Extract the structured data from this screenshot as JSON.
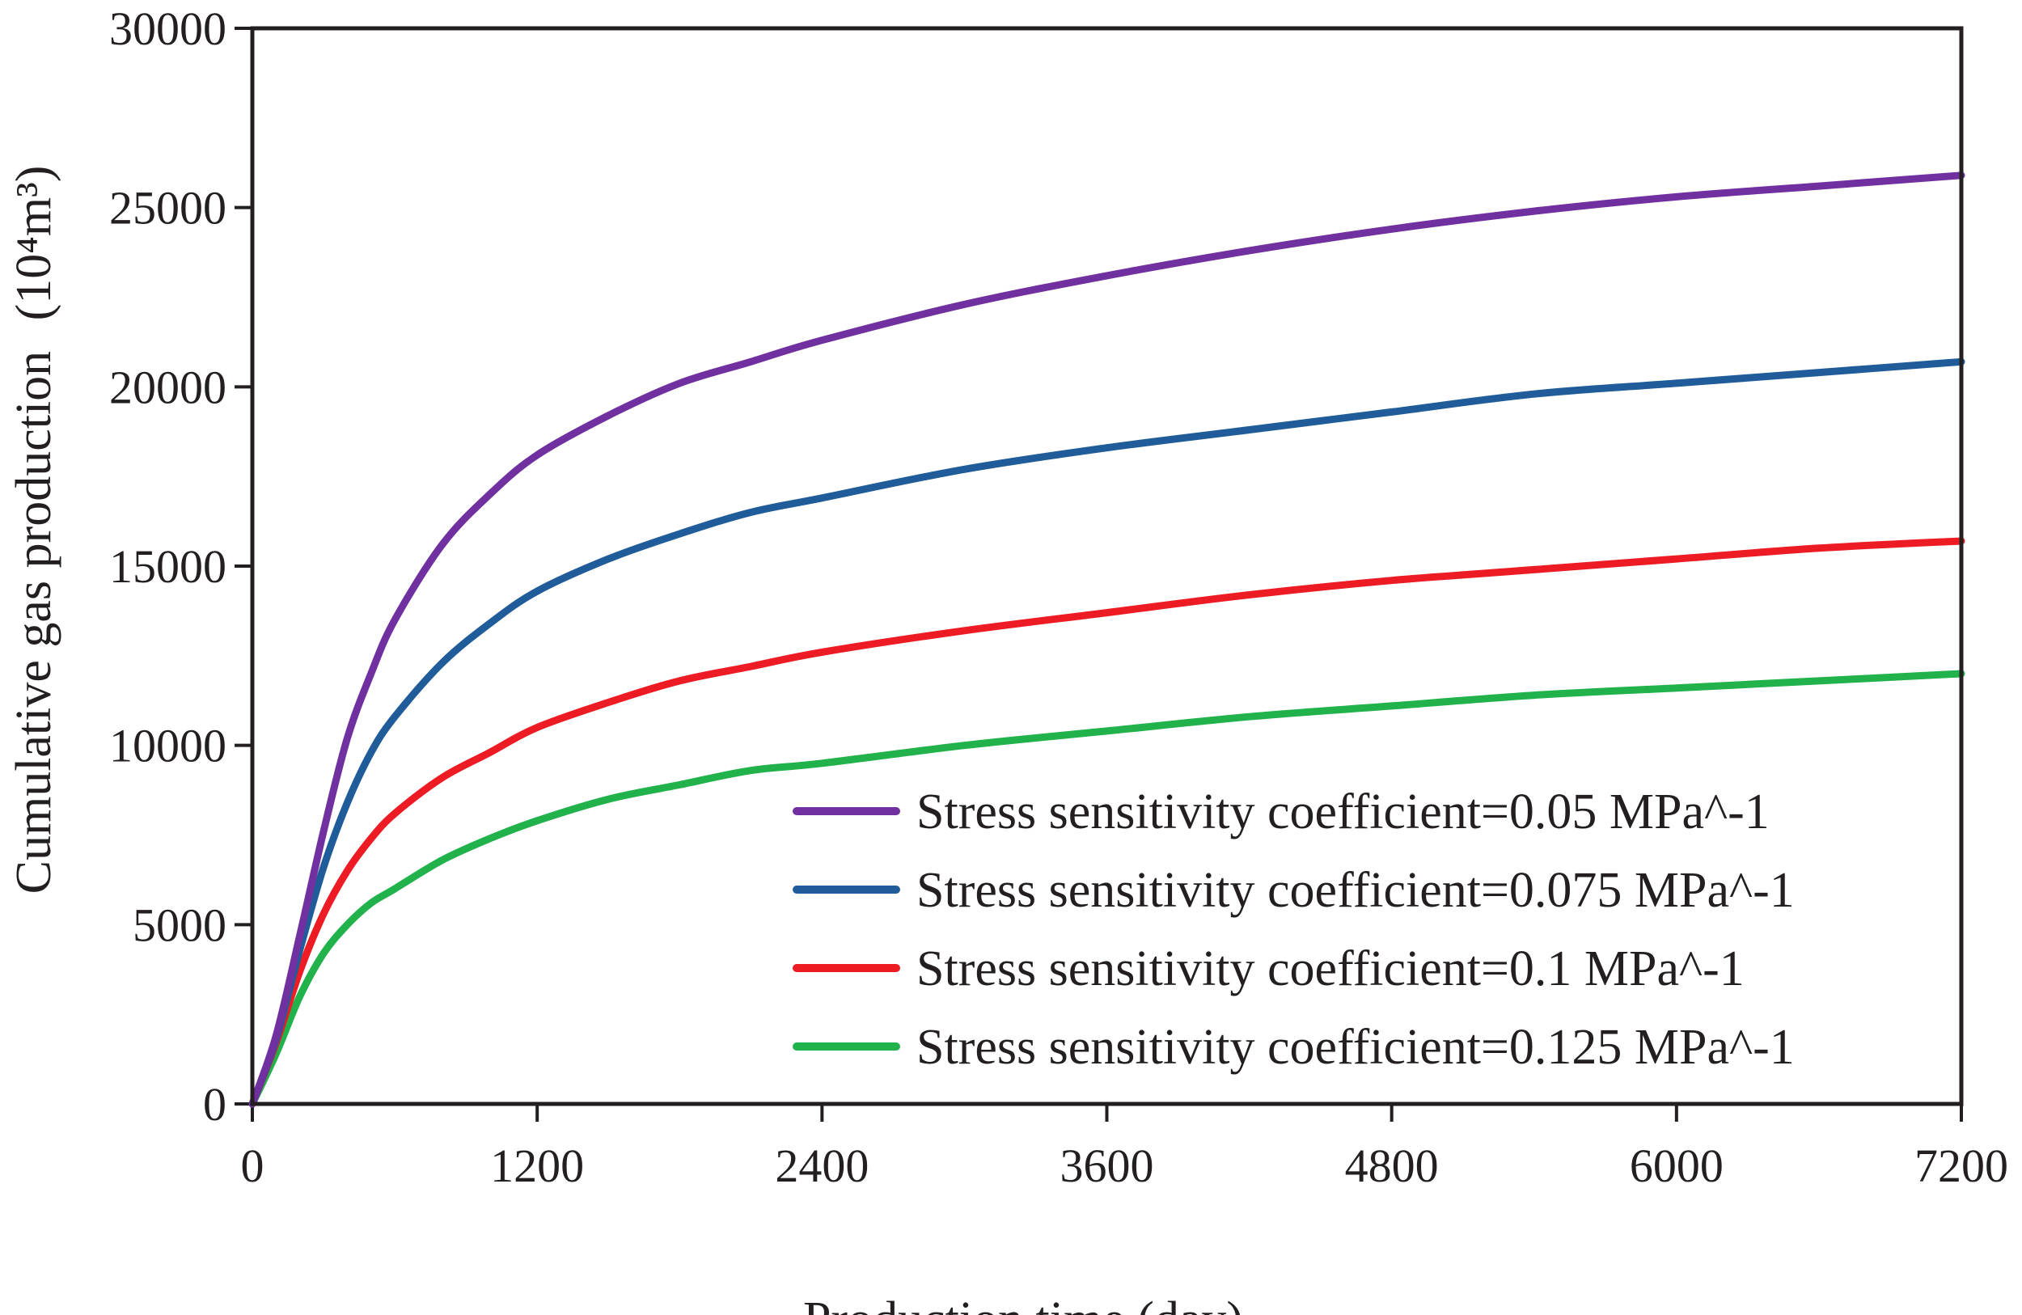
{
  "chart_data": {
    "type": "line",
    "title": "",
    "xlabel": "Production time (day)",
    "ylabel": "Cumulative gas production",
    "ylabel_unit": "(10⁴m³)",
    "xlim": [
      0,
      7200
    ],
    "ylim": [
      0,
      30000
    ],
    "xticks": [
      "0",
      "1200",
      "2400",
      "3600",
      "4800",
      "6000",
      "7200"
    ],
    "yticks": [
      "0",
      "5000",
      "10000",
      "15000",
      "20000",
      "25000",
      "30000"
    ],
    "grid": false,
    "legend_position": "bottom-right",
    "x": [
      0,
      100,
      200,
      300,
      400,
      500,
      600,
      800,
      1000,
      1200,
      1500,
      1800,
      2100,
      2400,
      3000,
      3600,
      4200,
      4800,
      5400,
      6000,
      6600,
      7200
    ],
    "series": [
      {
        "name": "Stress sensitivity coefficient=0.05 MPa^-1",
        "color": "#7030a0",
        "values": [
          0,
          1900,
          4700,
          7600,
          10200,
          12000,
          13500,
          15600,
          17000,
          18100,
          19200,
          20100,
          20700,
          21300,
          22300,
          23100,
          23800,
          24400,
          24900,
          25300,
          25600,
          25900
        ]
      },
      {
        "name": "Stress sensitivity coefficient=0.075 MPa^-1",
        "color": "#1f5c99",
        "values": [
          0,
          1800,
          4300,
          6600,
          8400,
          9800,
          10800,
          12300,
          13400,
          14300,
          15200,
          15900,
          16500,
          16900,
          17700,
          18300,
          18800,
          19300,
          19800,
          20100,
          20400,
          20700
        ]
      },
      {
        "name": "Stress sensitivity coefficient=0.1 MPa^-1",
        "color": "#ed1c24",
        "values": [
          0,
          1700,
          3700,
          5300,
          6500,
          7400,
          8100,
          9100,
          9800,
          10500,
          11200,
          11800,
          12200,
          12600,
          13200,
          13700,
          14200,
          14600,
          14900,
          15200,
          15500,
          15700
        ]
      },
      {
        "name": "Stress sensitivity coefficient=0.125 MPa^-1",
        "color": "#22b24c",
        "values": [
          0,
          1400,
          3000,
          4200,
          5000,
          5600,
          6000,
          6800,
          7400,
          7900,
          8500,
          8900,
          9300,
          9500,
          10000,
          10400,
          10800,
          11100,
          11400,
          11600,
          11800,
          12000
        ]
      }
    ]
  }
}
